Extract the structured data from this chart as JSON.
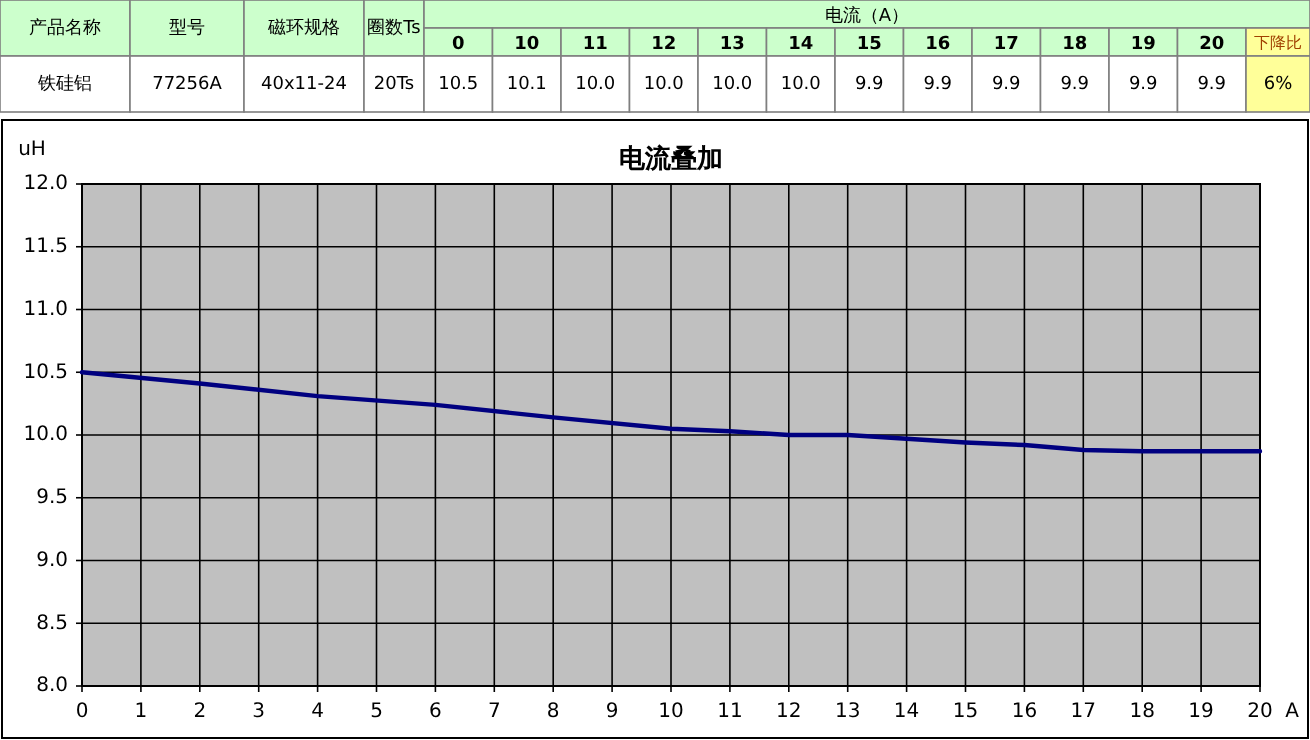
{
  "chart_data": {
    "type": "line",
    "title": "电流叠加",
    "ylabel": "uH",
    "xlabel": "A",
    "xlim": [
      0,
      20
    ],
    "xticks": [
      0,
      1,
      2,
      3,
      4,
      5,
      6,
      7,
      8,
      9,
      10,
      11,
      12,
      13,
      14,
      15,
      16,
      17,
      18,
      19,
      20
    ],
    "ylim": [
      8,
      12
    ],
    "yticks": [
      {
        "value": 8,
        "label": "8.0"
      },
      {
        "value": 8.5,
        "label": "8.5"
      },
      {
        "value": 9,
        "label": "9.0"
      },
      {
        "value": 9.5,
        "label": "9.5"
      },
      {
        "value": 10,
        "label": "10.0"
      },
      {
        "value": 10.5,
        "label": "10.5"
      },
      {
        "value": 11,
        "label": "11.0"
      },
      {
        "value": 11.5,
        "label": "11.5"
      },
      {
        "value": 12,
        "label": "12.0"
      }
    ],
    "grid": true,
    "series": [
      {
        "color": "#000080",
        "x": [
          0,
          2,
          4,
          6,
          8,
          10,
          11,
          12,
          13,
          14,
          15,
          16,
          17,
          18,
          19,
          20
        ],
        "values": [
          10.5,
          10.41,
          10.31,
          10.24,
          10.14,
          10.05,
          10.03,
          10.0,
          10.0,
          9.97,
          9.94,
          9.92,
          9.88,
          9.87,
          9.87,
          9.87
        ]
      }
    ],
    "annotations": [
      "产品名称",
      "型号",
      "磁环规格",
      "圈数Ts",
      "电流（A）",
      "0",
      "10",
      "11",
      "12",
      "13",
      "14",
      "15",
      "16",
      "17",
      "18",
      "19",
      "20",
      "下降比",
      "铁硅铝",
      "77256A",
      "40x11-24",
      "20Ts",
      "10.5",
      "10.1",
      "10.0",
      "10.0",
      "10.0",
      "10.0",
      "9.9",
      "9.9",
      "9.9",
      "9.9",
      "9.9",
      "9.9",
      "6%"
    ]
  }
}
